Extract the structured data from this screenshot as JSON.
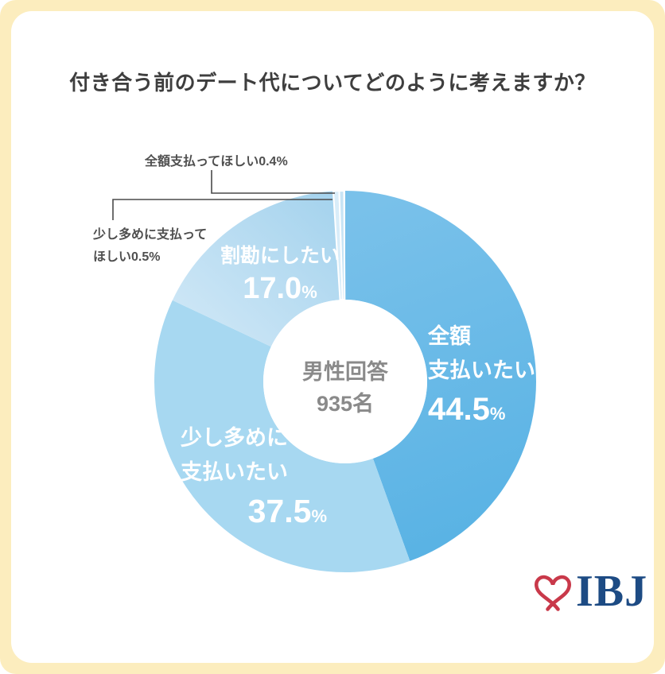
{
  "title": "付き合う前のデート代についてどのように考えますか？",
  "chart_data": {
    "type": "pie",
    "donut": true,
    "title": "付き合う前のデート代についてどのように考えますか？",
    "center": {
      "line1": "男性回答",
      "line2": "935名"
    },
    "start_angle_deg": 0,
    "direction": "clockwise",
    "donut_hole_ratio": 0.43,
    "legend_position": "on-slices",
    "segments": [
      {
        "label": "全額支払いたい",
        "value": 44.5,
        "color": "#58B2E4",
        "color_light": "#79C1EA"
      },
      {
        "label": "少し多めに支払いたい",
        "value": 37.5,
        "color": "#A7D8F1"
      },
      {
        "label": "割勘にしたい",
        "value": 17.0,
        "color": "#A3D2ED",
        "color_light": "#D3E9F7"
      },
      {
        "label": "少し多めに支払ってほしい",
        "value": 0.5,
        "color": "#D9EDF9"
      },
      {
        "label": "全額支払ってほしい",
        "value": 0.4,
        "color": "#C8E4F5"
      }
    ]
  },
  "segment_labels": {
    "full_pay": {
      "line1": "全額",
      "line2": "支払いたい",
      "num": "44.5",
      "unit": "%"
    },
    "bit_more": {
      "line1": "少し多めに",
      "line2": "支払いたい",
      "num": "37.5",
      "unit": "%"
    },
    "split": {
      "line1": "割勘にしたい",
      "num": "17.0",
      "unit": "%"
    },
    "center": {
      "line1": "男性回答",
      "line2": "935名"
    }
  },
  "callouts": {
    "want_full": {
      "text": "全額支払ってほしい0.4%"
    },
    "want_bit_more": {
      "line1": "少し多めに支払って",
      "line2": "ほしい0.5%"
    }
  },
  "logo": {
    "text": "IBJ",
    "heart_color": "#C9394A",
    "text_color": "#1D4B84"
  },
  "colors": {
    "background": "#FCEDBE",
    "card": "#FFFFFF",
    "title_text": "#3E3E3E",
    "callout_text": "#4F4F4F",
    "center_text": "#8A8A8A",
    "leader_line": "#4A4A4A"
  }
}
